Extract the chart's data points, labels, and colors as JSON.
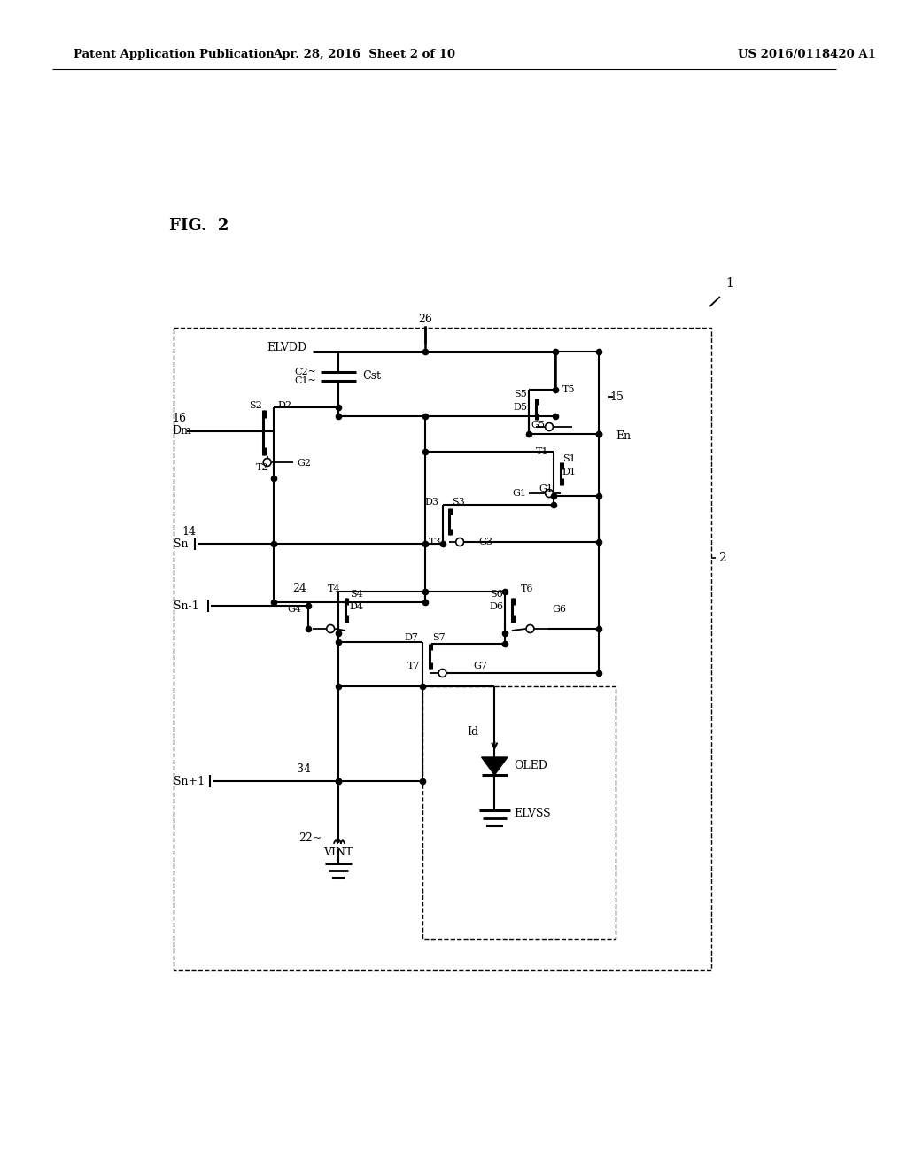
{
  "bg": "#ffffff",
  "header_left": "Patent Application Publication",
  "header_mid": "Apr. 28, 2016  Sheet 2 of 10",
  "header_right": "US 2016/0118420 A1",
  "fig_label": "FIG.  2"
}
